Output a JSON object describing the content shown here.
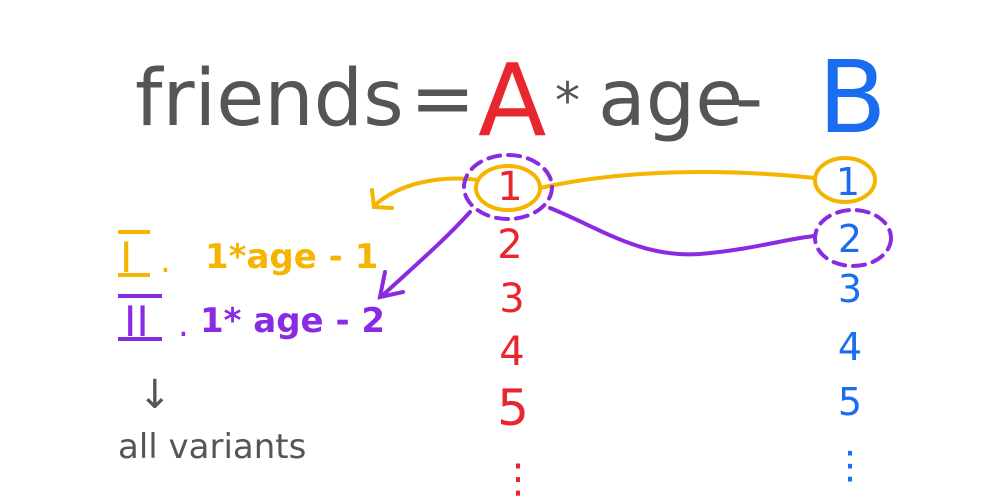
{
  "equation": {
    "lhs": "friends",
    "equals": "=",
    "param_a": "A",
    "times": "*",
    "variable": "age",
    "minus": "-",
    "param_b": "B"
  },
  "a_values": [
    "1",
    "2",
    "3",
    "4",
    "5",
    "⋮"
  ],
  "b_values": [
    "1",
    "2",
    "3",
    "4",
    "5",
    "⋮"
  ],
  "variants": [
    {
      "numeral": "I",
      "sep": ".",
      "expr": "1*age - 1",
      "color": "#f5b400"
    },
    {
      "numeral": "II",
      "sep": ".",
      "expr": "1* age - 2",
      "color": "#8a2be2"
    }
  ],
  "down_arrow": "↓",
  "all_variants": "all variants",
  "colors": {
    "ink": "#555555",
    "a": "#e8262e",
    "b": "#1a6cf0",
    "variant1": "#f5b400",
    "variant2": "#8a2be2"
  }
}
